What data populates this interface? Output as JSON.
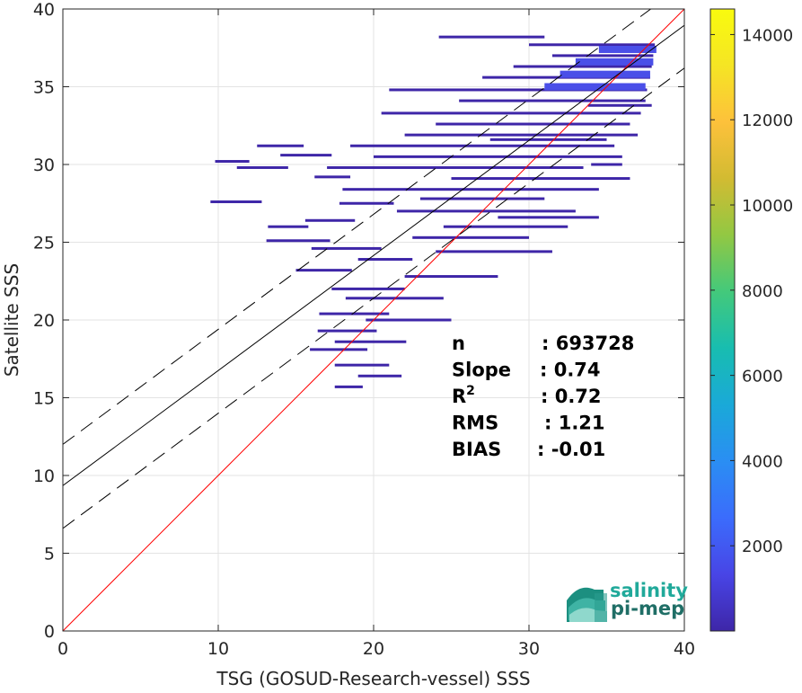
{
  "chart_data": {
    "type": "scatter",
    "subtype": "density-histogram",
    "xlabel": "TSG (GOSUD-Research-vessel) SSS",
    "ylabel": "Satellite SSS",
    "xlim": [
      0,
      40
    ],
    "ylim": [
      0,
      40
    ],
    "xticks": [
      "0",
      "10",
      "20",
      "30",
      "40"
    ],
    "yticks": [
      "0",
      "5",
      "10",
      "15",
      "20",
      "25",
      "30",
      "35",
      "40"
    ],
    "grid": true,
    "lines": [
      {
        "role": "identity",
        "color": "#ff0000",
        "style": "solid",
        "x": [
          0,
          40
        ],
        "y": [
          0,
          40
        ]
      },
      {
        "role": "regression",
        "color": "#000000",
        "style": "solid",
        "slope": 0.74,
        "intercept": 9.35
      },
      {
        "role": "regression-upper",
        "color": "#000000",
        "style": "dashed",
        "slope": 0.74,
        "intercept": 12.0
      },
      {
        "role": "regression-lower",
        "color": "#000000",
        "style": "dashed",
        "slope": 0.74,
        "intercept": 6.6
      }
    ],
    "density_segments": [
      {
        "x0": 11.2,
        "x1": 14.5,
        "y": 29.8
      },
      {
        "x0": 9.8,
        "x1": 12.0,
        "y": 30.2
      },
      {
        "x0": 12.5,
        "x1": 15.5,
        "y": 31.2
      },
      {
        "x0": 14.0,
        "x1": 17.3,
        "y": 30.6
      },
      {
        "x0": 16.2,
        "x1": 18.5,
        "y": 29.2
      },
      {
        "x0": 9.5,
        "x1": 12.8,
        "y": 27.6
      },
      {
        "x0": 13.2,
        "x1": 15.8,
        "y": 26.0
      },
      {
        "x0": 15.6,
        "x1": 18.8,
        "y": 26.4
      },
      {
        "x0": 17.8,
        "x1": 21.3,
        "y": 27.5
      },
      {
        "x0": 13.1,
        "x1": 17.2,
        "y": 25.1
      },
      {
        "x0": 16.0,
        "x1": 20.5,
        "y": 24.6
      },
      {
        "x0": 15.0,
        "x1": 18.6,
        "y": 23.2
      },
      {
        "x0": 19.0,
        "x1": 22.5,
        "y": 23.9
      },
      {
        "x0": 17.3,
        "x1": 22.0,
        "y": 22.0
      },
      {
        "x0": 18.2,
        "x1": 24.5,
        "y": 21.4
      },
      {
        "x0": 16.5,
        "x1": 21.0,
        "y": 20.4
      },
      {
        "x0": 19.5,
        "x1": 25.0,
        "y": 20.0
      },
      {
        "x0": 16.4,
        "x1": 20.2,
        "y": 19.3
      },
      {
        "x0": 17.5,
        "x1": 22.1,
        "y": 18.6
      },
      {
        "x0": 15.9,
        "x1": 19.6,
        "y": 18.1
      },
      {
        "x0": 17.5,
        "x1": 21.0,
        "y": 17.1
      },
      {
        "x0": 19.0,
        "x1": 21.8,
        "y": 16.4
      },
      {
        "x0": 17.5,
        "x1": 19.3,
        "y": 15.7
      },
      {
        "x0": 22.0,
        "x1": 28.0,
        "y": 22.8
      },
      {
        "x0": 24.0,
        "x1": 31.5,
        "y": 24.4
      },
      {
        "x0": 22.5,
        "x1": 30.0,
        "y": 25.3
      },
      {
        "x0": 24.5,
        "x1": 32.5,
        "y": 26.0
      },
      {
        "x0": 21.5,
        "x1": 33.0,
        "y": 27.0
      },
      {
        "x0": 23.0,
        "x1": 31.0,
        "y": 27.8
      },
      {
        "x0": 18.0,
        "x1": 34.5,
        "y": 28.4
      },
      {
        "x0": 25.0,
        "x1": 36.5,
        "y": 29.1
      },
      {
        "x0": 17.0,
        "x1": 33.5,
        "y": 29.8
      },
      {
        "x0": 20.0,
        "x1": 36.0,
        "y": 30.5
      },
      {
        "x0": 18.5,
        "x1": 35.5,
        "y": 31.2
      },
      {
        "x0": 22.0,
        "x1": 37.0,
        "y": 31.9
      },
      {
        "x0": 24.0,
        "x1": 36.5,
        "y": 32.6
      },
      {
        "x0": 20.5,
        "x1": 37.2,
        "y": 33.3
      },
      {
        "x0": 25.5,
        "x1": 37.5,
        "y": 34.1
      },
      {
        "x0": 21.0,
        "x1": 37.6,
        "y": 34.8
      },
      {
        "x0": 27.0,
        "x1": 37.8,
        "y": 35.6
      },
      {
        "x0": 29.0,
        "x1": 37.9,
        "y": 36.3
      },
      {
        "x0": 31.5,
        "x1": 38.0,
        "y": 37.0
      },
      {
        "x0": 30.0,
        "x1": 38.1,
        "y": 37.7
      },
      {
        "x0": 24.2,
        "x1": 31.0,
        "y": 38.2
      },
      {
        "x0": 33.8,
        "x1": 37.9,
        "y": 33.8
      },
      {
        "x0": 34.0,
        "x1": 36.0,
        "y": 30.0
      },
      {
        "x0": 27.5,
        "x1": 35.0,
        "y": 31.6
      },
      {
        "x0": 28.0,
        "x1": 34.5,
        "y": 26.6
      }
    ],
    "density_core": [
      {
        "x0": 31.0,
        "x1": 37.5,
        "y": 35.0
      },
      {
        "x0": 32.0,
        "x1": 37.8,
        "y": 35.8
      },
      {
        "x0": 33.0,
        "x1": 38.0,
        "y": 36.6
      },
      {
        "x0": 34.5,
        "x1": 38.2,
        "y": 37.4
      }
    ],
    "colorbar": {
      "min": 0,
      "max": 14600,
      "ticks": [
        2000,
        4000,
        6000,
        8000,
        10000,
        12000,
        14000
      ],
      "tick_labels": [
        "2000",
        "4000",
        "6000",
        "8000",
        "10000",
        "12000",
        "14000"
      ],
      "colors": [
        "#3e26a8",
        "#4845e6",
        "#3b6cfc",
        "#2a8ef3",
        "#1aa9d8",
        "#18bdb0",
        "#43c97b",
        "#92c843",
        "#d2bb32",
        "#fdc13b",
        "#f5e524",
        "#f9fb0e"
      ]
    },
    "stats": [
      {
        "label": "n",
        "value": ": 693728"
      },
      {
        "label": "Slope",
        "value": ": 0.74"
      },
      {
        "label": "R",
        "sup": "2",
        "value": ": 0.72"
      },
      {
        "label": "RMS",
        "value": ": 1.21"
      },
      {
        "label": "BIAS",
        "value": ": -0.01"
      }
    ]
  },
  "logo": {
    "line1": "salinity",
    "line2": "pi-mep",
    "color1": "#20a99a",
    "color2": "#1f6e66"
  },
  "colors": {
    "density": "#3e26a8",
    "density_core": "#4a4fe8",
    "identity": "#ff0000",
    "grid": "#e3e3e3"
  }
}
